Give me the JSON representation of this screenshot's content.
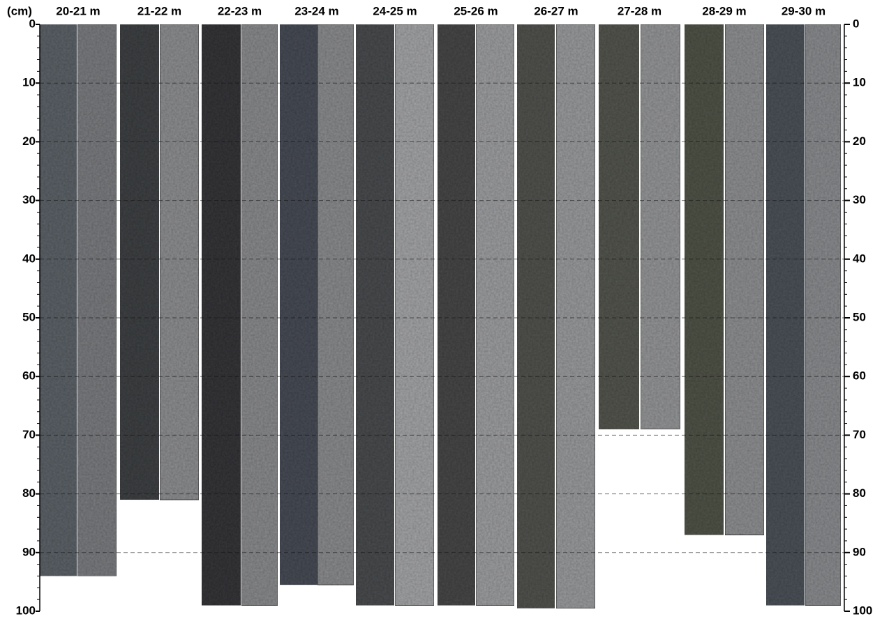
{
  "axis": {
    "unit_label": "(cm)",
    "ylim": [
      0,
      100
    ],
    "yticks": [
      0,
      10,
      20,
      30,
      40,
      50,
      60,
      70,
      80,
      90,
      100
    ]
  },
  "cores": [
    {
      "label": "20-21 m",
      "length": 94,
      "photo_color": "#5d6469",
      "ct_color": "#7b7d80"
    },
    {
      "label": "21-22 m",
      "length": 81,
      "photo_color": "#3f4244",
      "ct_color": "#8e8f91"
    },
    {
      "label": "22-23 m",
      "length": 99,
      "photo_color": "#38393a",
      "ct_color": "#8a8b8d"
    },
    {
      "label": "23-24 m",
      "length": 95.5,
      "photo_color": "#4a4e57",
      "ct_color": "#8b8c8e"
    },
    {
      "label": "24-25 m",
      "length": 99,
      "photo_color": "#4b4d4f",
      "ct_color": "#a4a5a7"
    },
    {
      "label": "25-26 m",
      "length": 99,
      "photo_color": "#4a4a49",
      "ct_color": "#9e9fa1"
    },
    {
      "label": "26-27 m",
      "length": 99.5,
      "photo_color": "#535250",
      "ct_color": "#9a9b9d"
    },
    {
      "label": "27-28 m",
      "length": 69,
      "photo_color": "#55564f",
      "ct_color": "#959698"
    },
    {
      "label": "28-29 m",
      "length": 87,
      "photo_color": "#51544a",
      "ct_color": "#8f9092"
    },
    {
      "label": "29-30 m",
      "length": 99,
      "photo_color": "#4e535a",
      "ct_color": "#8a8c8f"
    }
  ]
}
